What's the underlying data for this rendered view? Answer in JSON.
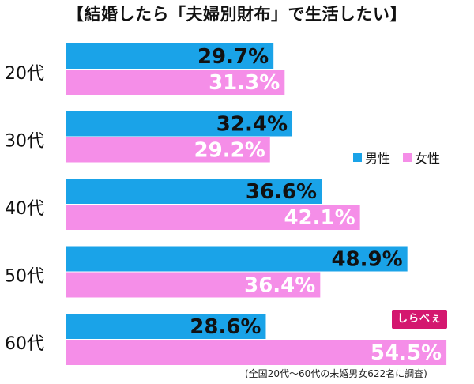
{
  "chart_data": {
    "type": "bar",
    "orientation": "horizontal",
    "title": "【結婚したら「夫婦別財布」で生活したい】",
    "categories": [
      "20代",
      "30代",
      "40代",
      "50代",
      "60代"
    ],
    "series": [
      {
        "name": "男性",
        "color": "#1aa3e8",
        "values": [
          29.7,
          32.4,
          36.6,
          48.9,
          28.6
        ]
      },
      {
        "name": "女性",
        "color": "#f58ee8",
        "values": [
          31.3,
          29.2,
          42.1,
          36.4,
          54.5
        ]
      }
    ],
    "value_format": "%",
    "xlim": [
      0,
      58
    ],
    "grid": false,
    "legend": "right"
  },
  "logo_text": "しらべぇ",
  "footnote": "(全国20代〜60代の未婚男女622名に調査)"
}
